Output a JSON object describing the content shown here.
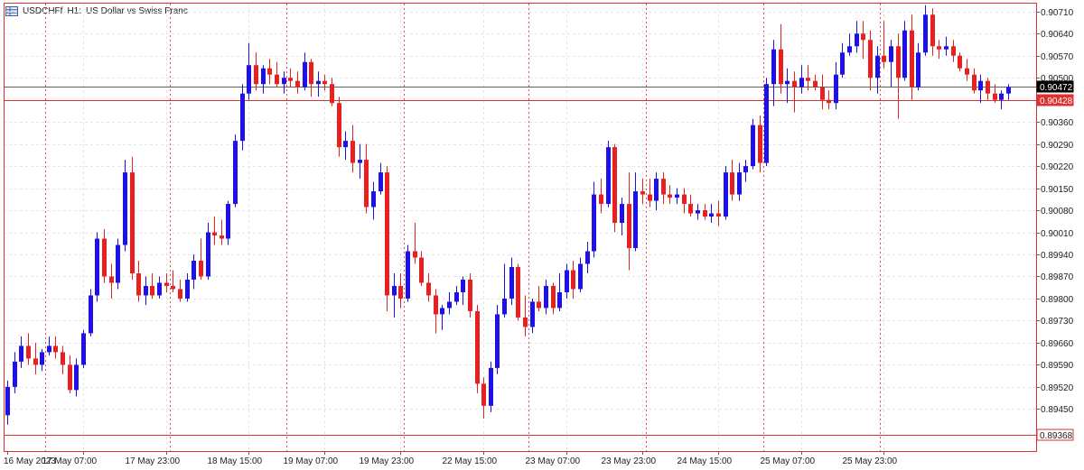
{
  "window": {
    "symbol": "USDCHFf",
    "timeframe": "H1:",
    "description": "US Dollar vs Swiss Franc",
    "icon": "chart-grid-icon"
  },
  "colors": {
    "bull": "#1f10e8",
    "bear": "#e82020",
    "grid": "#e4e4e4",
    "session": "#e03030",
    "bid_line": "#606060",
    "ask_line": "#e03030",
    "axis": "#e03030"
  },
  "price_tags": {
    "bid": "0.90472",
    "ask": "0.90428",
    "low": "0.89368"
  },
  "chart_data": {
    "type": "candlestick",
    "y_ticks": [
      "0.90710",
      "0.90640",
      "0.90570",
      "0.90500",
      "0.90430",
      "0.90360",
      "0.90290",
      "0.90220",
      "0.90150",
      "0.90080",
      "0.90010",
      "0.89940",
      "0.89870",
      "0.89800",
      "0.89730",
      "0.89660",
      "0.89590",
      "0.89520",
      "0.89450"
    ],
    "ylim": [
      0.89368,
      0.90738
    ],
    "x_labels": [
      "16 May 2023",
      "17 May 07:00",
      "17 May 23:00",
      "18 May 15:00",
      "19 May 07:00",
      "19 May 23:00",
      "22 May 15:00",
      "23 May 07:00",
      "23 May 23:00",
      "24 May 15:00",
      "25 May 07:00",
      "25 May 23:00"
    ],
    "x_label_index": [
      0,
      11,
      23,
      35,
      46,
      57,
      69,
      81,
      92,
      103,
      115,
      127
    ],
    "session_separators": [
      6,
      24,
      41,
      58,
      76,
      93,
      110,
      127
    ],
    "horizontal_lines": {
      "bid": 0.90472,
      "ask": 0.90428,
      "low": 0.89368
    },
    "candles": [
      [
        0.8943,
        0.8954,
        0.894,
        0.8952
      ],
      [
        0.8952,
        0.8963,
        0.895,
        0.896
      ],
      [
        0.896,
        0.8968,
        0.8958,
        0.8965
      ],
      [
        0.8965,
        0.8969,
        0.8959,
        0.8961
      ],
      [
        0.8961,
        0.8966,
        0.8956,
        0.8959
      ],
      [
        0.8959,
        0.8964,
        0.8957,
        0.8963
      ],
      [
        0.8963,
        0.8968,
        0.8962,
        0.8965
      ],
      [
        0.8965,
        0.8968,
        0.8961,
        0.8963
      ],
      [
        0.8963,
        0.8965,
        0.8956,
        0.8959
      ],
      [
        0.8959,
        0.8962,
        0.895,
        0.8951
      ],
      [
        0.8951,
        0.8961,
        0.8949,
        0.8959
      ],
      [
        0.8959,
        0.897,
        0.8958,
        0.8969
      ],
      [
        0.8969,
        0.8983,
        0.8968,
        0.8981
      ],
      [
        0.8981,
        0.9001,
        0.8979,
        0.8999
      ],
      [
        0.8999,
        0.9002,
        0.8985,
        0.8987
      ],
      [
        0.8987,
        0.8991,
        0.898,
        0.8985
      ],
      [
        0.8985,
        0.8999,
        0.8983,
        0.8997
      ],
      [
        0.8997,
        0.9024,
        0.8995,
        0.902
      ],
      [
        0.902,
        0.9025,
        0.8986,
        0.8988
      ],
      [
        0.8988,
        0.8992,
        0.8979,
        0.8981
      ],
      [
        0.8981,
        0.8987,
        0.8978,
        0.8984
      ],
      [
        0.8984,
        0.8988,
        0.898,
        0.8981
      ],
      [
        0.8981,
        0.8987,
        0.898,
        0.8985
      ],
      [
        0.8985,
        0.8988,
        0.8982,
        0.8984
      ],
      [
        0.8984,
        0.8989,
        0.8982,
        0.8983
      ],
      [
        0.8983,
        0.8986,
        0.8979,
        0.898
      ],
      [
        0.898,
        0.8988,
        0.8979,
        0.8986
      ],
      [
        0.8986,
        0.8994,
        0.8983,
        0.8992
      ],
      [
        0.8992,
        0.8999,
        0.8986,
        0.8987
      ],
      [
        0.8987,
        0.9004,
        0.8986,
        0.9001
      ],
      [
        0.9001,
        0.9006,
        0.8997,
        0.9
      ],
      [
        0.9,
        0.9005,
        0.8997,
        0.8999
      ],
      [
        0.8999,
        0.9011,
        0.8997,
        0.901
      ],
      [
        0.901,
        0.9032,
        0.9009,
        0.903
      ],
      [
        0.903,
        0.9048,
        0.9027,
        0.9045
      ],
      [
        0.9045,
        0.9061,
        0.9043,
        0.9054
      ],
      [
        0.9054,
        0.9058,
        0.9046,
        0.9048
      ],
      [
        0.9048,
        0.9054,
        0.9045,
        0.9053
      ],
      [
        0.9053,
        0.9056,
        0.9048,
        0.9051
      ],
      [
        0.9051,
        0.9055,
        0.9047,
        0.9048
      ],
      [
        0.9048,
        0.9052,
        0.9045,
        0.905
      ],
      [
        0.905,
        0.9053,
        0.9047,
        0.9049
      ],
      [
        0.9049,
        0.9052,
        0.9045,
        0.9047
      ],
      [
        0.9047,
        0.9058,
        0.9046,
        0.9055
      ],
      [
        0.9055,
        0.9056,
        0.9044,
        0.9048
      ],
      [
        0.9048,
        0.9052,
        0.9044,
        0.9049
      ],
      [
        0.9049,
        0.9051,
        0.9046,
        0.9048
      ],
      [
        0.9048,
        0.905,
        0.9041,
        0.9042
      ],
      [
        0.9042,
        0.9044,
        0.9025,
        0.9028
      ],
      [
        0.9028,
        0.9033,
        0.9024,
        0.903
      ],
      [
        0.903,
        0.9035,
        0.902,
        0.9023
      ],
      [
        0.9023,
        0.9029,
        0.9018,
        0.9024
      ],
      [
        0.9024,
        0.9029,
        0.9007,
        0.9009
      ],
      [
        0.9009,
        0.9017,
        0.9005,
        0.9014
      ],
      [
        0.9014,
        0.9023,
        0.9013,
        0.902
      ],
      [
        0.902,
        0.9022,
        0.8976,
        0.8981
      ],
      [
        0.8981,
        0.8988,
        0.8974,
        0.8984
      ],
      [
        0.8984,
        0.8988,
        0.8977,
        0.898
      ],
      [
        0.898,
        0.8997,
        0.8979,
        0.8995
      ],
      [
        0.8995,
        0.9004,
        0.8991,
        0.8993
      ],
      [
        0.8993,
        0.8995,
        0.8984,
        0.8985
      ],
      [
        0.8985,
        0.8988,
        0.8979,
        0.8981
      ],
      [
        0.8981,
        0.8983,
        0.8969,
        0.8975
      ],
      [
        0.8975,
        0.8978,
        0.897,
        0.8977
      ],
      [
        0.8977,
        0.8982,
        0.8975,
        0.8979
      ],
      [
        0.8979,
        0.8984,
        0.8978,
        0.8982
      ],
      [
        0.8982,
        0.8987,
        0.8978,
        0.8986
      ],
      [
        0.8986,
        0.8988,
        0.8974,
        0.8976
      ],
      [
        0.8976,
        0.8978,
        0.895,
        0.8953
      ],
      [
        0.8953,
        0.8955,
        0.8942,
        0.8946
      ],
      [
        0.8946,
        0.896,
        0.8944,
        0.8958
      ],
      [
        0.8958,
        0.8978,
        0.8956,
        0.8975
      ],
      [
        0.8975,
        0.8991,
        0.8974,
        0.898
      ],
      [
        0.898,
        0.8993,
        0.8978,
        0.899
      ],
      [
        0.899,
        0.8991,
        0.8973,
        0.8974
      ],
      [
        0.8974,
        0.8981,
        0.8968,
        0.8971
      ],
      [
        0.8971,
        0.898,
        0.8969,
        0.8979
      ],
      [
        0.8979,
        0.8984,
        0.8976,
        0.8977
      ],
      [
        0.8977,
        0.8986,
        0.8975,
        0.8984
      ],
      [
        0.8984,
        0.8985,
        0.8975,
        0.8977
      ],
      [
        0.8977,
        0.8988,
        0.8976,
        0.8982
      ],
      [
        0.8982,
        0.8991,
        0.898,
        0.8989
      ],
      [
        0.8989,
        0.8992,
        0.898,
        0.8983
      ],
      [
        0.8983,
        0.8993,
        0.8982,
        0.8991
      ],
      [
        0.8991,
        0.8998,
        0.8988,
        0.8995
      ],
      [
        0.8995,
        0.9017,
        0.8993,
        0.9013
      ],
      [
        0.9013,
        0.9018,
        0.9007,
        0.901
      ],
      [
        0.901,
        0.903,
        0.9009,
        0.9028
      ],
      [
        0.9028,
        0.9029,
        0.9001,
        0.9004
      ],
      [
        0.9004,
        0.9012,
        0.9,
        0.901
      ],
      [
        0.901,
        0.902,
        0.8989,
        0.8996
      ],
      [
        0.8996,
        0.902,
        0.8995,
        0.9014
      ],
      [
        0.9014,
        0.9018,
        0.901,
        0.9013
      ],
      [
        0.9013,
        0.9018,
        0.9009,
        0.9011
      ],
      [
        0.9011,
        0.902,
        0.9008,
        0.9018
      ],
      [
        0.9018,
        0.902,
        0.901,
        0.9013
      ],
      [
        0.9013,
        0.9016,
        0.901,
        0.9012
      ],
      [
        0.9012,
        0.9015,
        0.901,
        0.9013
      ],
      [
        0.9013,
        0.9015,
        0.9007,
        0.901
      ],
      [
        0.901,
        0.9013,
        0.9006,
        0.9007
      ],
      [
        0.9007,
        0.901,
        0.9005,
        0.9008
      ],
      [
        0.9008,
        0.901,
        0.9005,
        0.9006
      ],
      [
        0.9006,
        0.901,
        0.9004,
        0.9007
      ],
      [
        0.9007,
        0.9011,
        0.9003,
        0.9006
      ],
      [
        0.9006,
        0.9022,
        0.9005,
        0.902
      ],
      [
        0.902,
        0.9024,
        0.9011,
        0.9013
      ],
      [
        0.9013,
        0.9023,
        0.9011,
        0.902
      ],
      [
        0.902,
        0.9024,
        0.9017,
        0.9022
      ],
      [
        0.9022,
        0.9037,
        0.9021,
        0.9035
      ],
      [
        0.9035,
        0.9038,
        0.902,
        0.9023
      ],
      [
        0.9023,
        0.905,
        0.9022,
        0.9048
      ],
      [
        0.9048,
        0.9062,
        0.9041,
        0.9059
      ],
      [
        0.9059,
        0.9067,
        0.9045,
        0.9048
      ],
      [
        0.9048,
        0.9053,
        0.9042,
        0.9049
      ],
      [
        0.9049,
        0.9052,
        0.9039,
        0.9047
      ],
      [
        0.9047,
        0.9054,
        0.9045,
        0.905
      ],
      [
        0.905,
        0.9054,
        0.9046,
        0.9049
      ],
      [
        0.9049,
        0.9051,
        0.9046,
        0.9047
      ],
      [
        0.9047,
        0.9051,
        0.904,
        0.9043
      ],
      [
        0.9043,
        0.9046,
        0.904,
        0.9042
      ],
      [
        0.9042,
        0.9055,
        0.904,
        0.9051
      ],
      [
        0.9051,
        0.9061,
        0.905,
        0.9058
      ],
      [
        0.9058,
        0.9064,
        0.9057,
        0.906
      ],
      [
        0.906,
        0.9068,
        0.9058,
        0.9064
      ],
      [
        0.9064,
        0.9068,
        0.9056,
        0.9062
      ],
      [
        0.9062,
        0.9065,
        0.9046,
        0.905
      ],
      [
        0.905,
        0.906,
        0.9045,
        0.9057
      ],
      [
        0.9057,
        0.9068,
        0.9053,
        0.9055
      ],
      [
        0.9055,
        0.9062,
        0.9047,
        0.906
      ],
      [
        0.906,
        0.9064,
        0.9037,
        0.905
      ],
      [
        0.905,
        0.9068,
        0.9049,
        0.9065
      ],
      [
        0.9065,
        0.907,
        0.9043,
        0.9047
      ],
      [
        0.9047,
        0.9061,
        0.9046,
        0.9058
      ],
      [
        0.9058,
        0.9073,
        0.9057,
        0.907
      ],
      [
        0.907,
        0.9072,
        0.9057,
        0.906
      ],
      [
        0.906,
        0.9062,
        0.9056,
        0.9059
      ],
      [
        0.9059,
        0.9063,
        0.9057,
        0.906
      ],
      [
        0.906,
        0.9062,
        0.9055,
        0.9057
      ],
      [
        0.9057,
        0.9058,
        0.9052,
        0.9053
      ],
      [
        0.9053,
        0.9056,
        0.9049,
        0.9051
      ],
      [
        0.9051,
        0.9053,
        0.9045,
        0.9046
      ],
      [
        0.9046,
        0.9051,
        0.9042,
        0.9049
      ],
      [
        0.9049,
        0.905,
        0.9043,
        0.9045
      ],
      [
        0.9045,
        0.9048,
        0.9042,
        0.9043
      ],
      [
        0.9043,
        0.9046,
        0.904,
        0.9045
      ],
      [
        0.9045,
        0.9048,
        0.9043,
        0.9047
      ]
    ]
  }
}
